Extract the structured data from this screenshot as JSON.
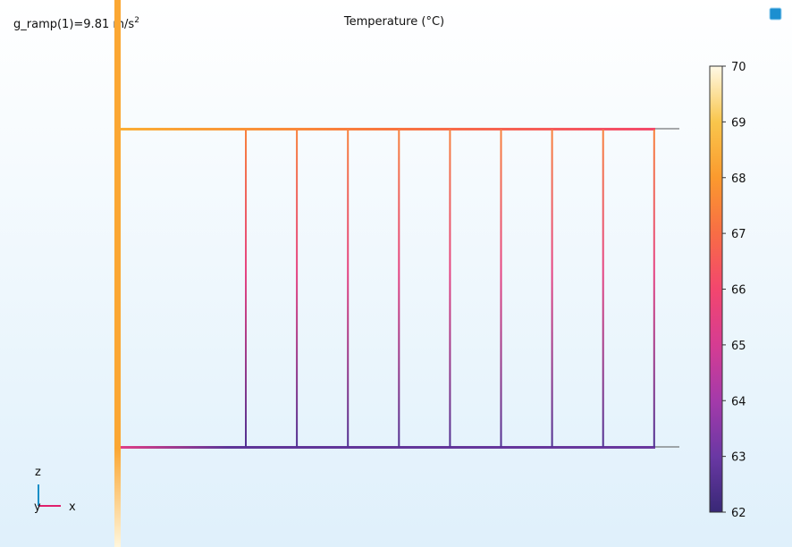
{
  "annotation": {
    "text": "g_ramp(1)=9.81 m/s",
    "superscript": "2"
  },
  "title": "Temperature (°C)",
  "colorbar": {
    "range": [
      62,
      70
    ],
    "ticks": [
      62,
      63,
      64,
      65,
      66,
      67,
      68,
      69,
      70
    ]
  },
  "triad": {
    "z": "z",
    "y": "y",
    "x": "x"
  }
}
